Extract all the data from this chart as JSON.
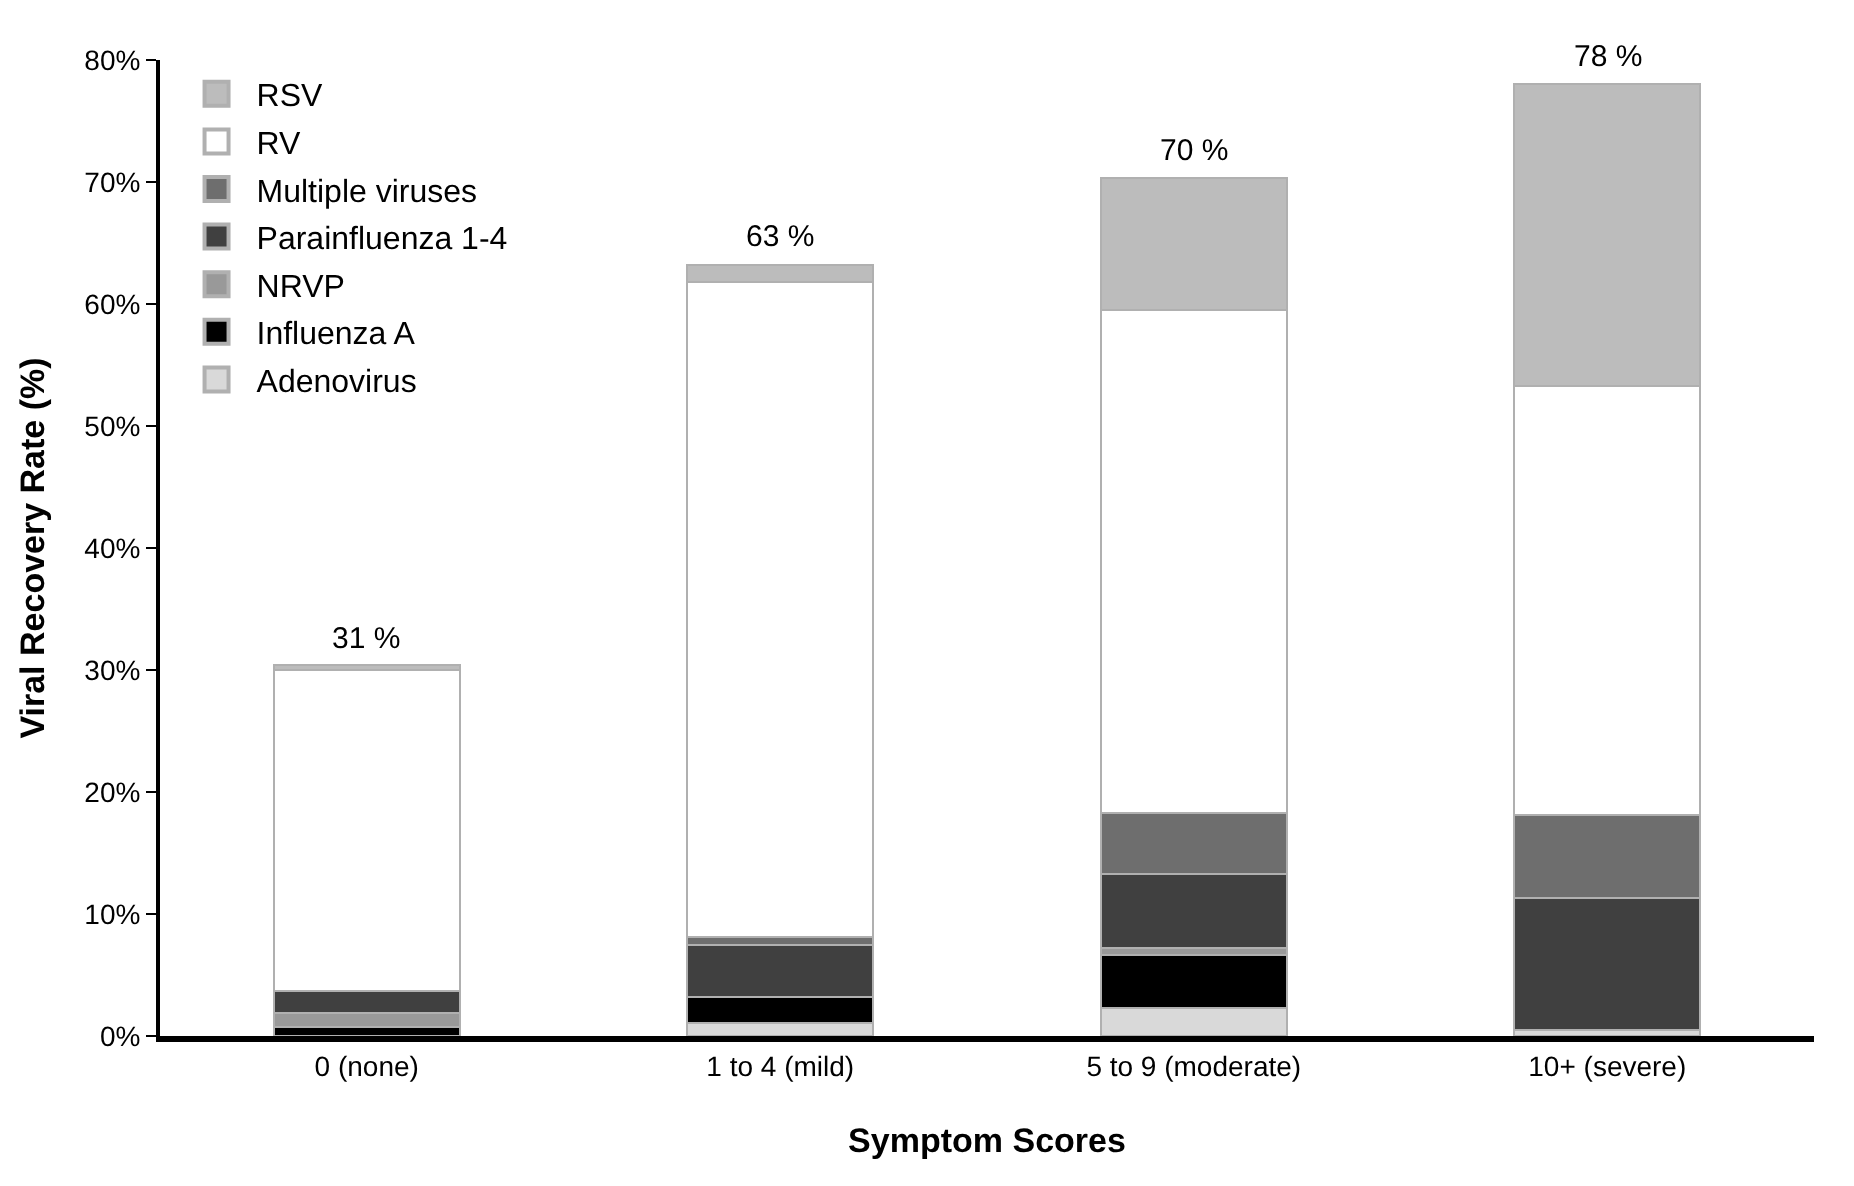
{
  "chart_data": {
    "type": "bar",
    "stacked": true,
    "xlabel": "Symptom Scores",
    "ylabel": "Viral Recovery Rate (%)",
    "categories": [
      "0 (none)",
      "1 to 4 (mild)",
      "5 to 9 (moderate)",
      "10+ (severe)"
    ],
    "series": [
      {
        "name": "Adenovirus",
        "color": "#d9d9d9",
        "values": [
          0,
          1.1,
          2.3,
          0.5
        ]
      },
      {
        "name": "Influenza A",
        "color": "#000000",
        "values": [
          0.7,
          2.1,
          4.3,
          0
        ]
      },
      {
        "name": "NRVP",
        "color": "#999999",
        "values": [
          1.2,
          0,
          0.6,
          0
        ]
      },
      {
        "name": "Parainfluenza 1-4",
        "color": "#404040",
        "values": [
          1.8,
          4.3,
          6.1,
          10.8
        ]
      },
      {
        "name": "Multiple viruses",
        "color": "#6e6e6e",
        "values": [
          0,
          0.6,
          5.0,
          6.8
        ]
      },
      {
        "name": "RV",
        "color": "#ffffff",
        "values": [
          26.3,
          53.7,
          41.2,
          35.2
        ]
      },
      {
        "name": "RSV",
        "color": "#bcbcbc",
        "values": [
          0.4,
          1.4,
          10.8,
          24.7
        ]
      }
    ],
    "totals": [
      "31 %",
      "63 %",
      "70 %",
      "78 %"
    ],
    "ylim": [
      0,
      80
    ],
    "yticks": [
      {
        "value": 0,
        "label": "0%"
      },
      {
        "value": 10,
        "label": "10%"
      },
      {
        "value": 20,
        "label": "20%"
      },
      {
        "value": 30,
        "label": "30%"
      },
      {
        "value": 40,
        "label": "40%"
      },
      {
        "value": 50,
        "label": "50%"
      },
      {
        "value": 60,
        "label": "60%"
      },
      {
        "value": 70,
        "label": "70%"
      },
      {
        "value": 80,
        "label": "80%"
      }
    ],
    "legend": "top left"
  }
}
